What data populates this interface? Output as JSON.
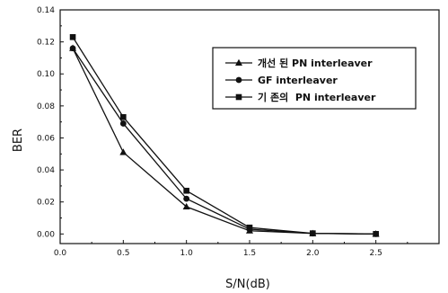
{
  "chart_data": {
    "type": "line",
    "title": "",
    "xlabel": "S/N(dB)",
    "ylabel": "BER",
    "xlim": [
      0.0,
      3.0
    ],
    "ylim": [
      -0.006,
      0.14
    ],
    "x_ticks": [
      0.0,
      0.5,
      1.0,
      1.5,
      2.0,
      2.5
    ],
    "x_tick_labels": [
      "0.0",
      "0.5",
      "1.0",
      "1.5",
      "2.0",
      "2.5"
    ],
    "y_ticks": [
      0.0,
      0.02,
      0.04,
      0.06,
      0.08,
      0.1,
      0.12,
      0.14
    ],
    "y_tick_labels": [
      "0.00",
      "0.02",
      "0.04",
      "0.06",
      "0.08",
      "0.10",
      "0.12",
      "0.14"
    ],
    "grid": false,
    "legend_position": "top-right",
    "series": [
      {
        "name": "개선 된 PN interleaver",
        "marker": "triangle",
        "x": [
          0.1,
          0.5,
          1.0,
          1.5,
          2.0,
          2.5
        ],
        "y": [
          0.116,
          0.051,
          0.017,
          0.002,
          0.0003,
          0.0
        ]
      },
      {
        "name": "GF interleaver",
        "marker": "circle",
        "x": [
          0.1,
          0.5,
          1.0,
          1.5,
          2.0,
          2.5
        ],
        "y": [
          0.116,
          0.069,
          0.022,
          0.003,
          0.0003,
          0.0
        ]
      },
      {
        "name": "기 존의  PN interleaver",
        "marker": "square",
        "x": [
          0.1,
          0.5,
          1.0,
          1.5,
          2.0,
          2.5
        ],
        "y": [
          0.123,
          0.073,
          0.027,
          0.004,
          0.0004,
          0.0
        ]
      }
    ]
  },
  "colors": {
    "line": "#111111",
    "background": "#ffffff"
  }
}
